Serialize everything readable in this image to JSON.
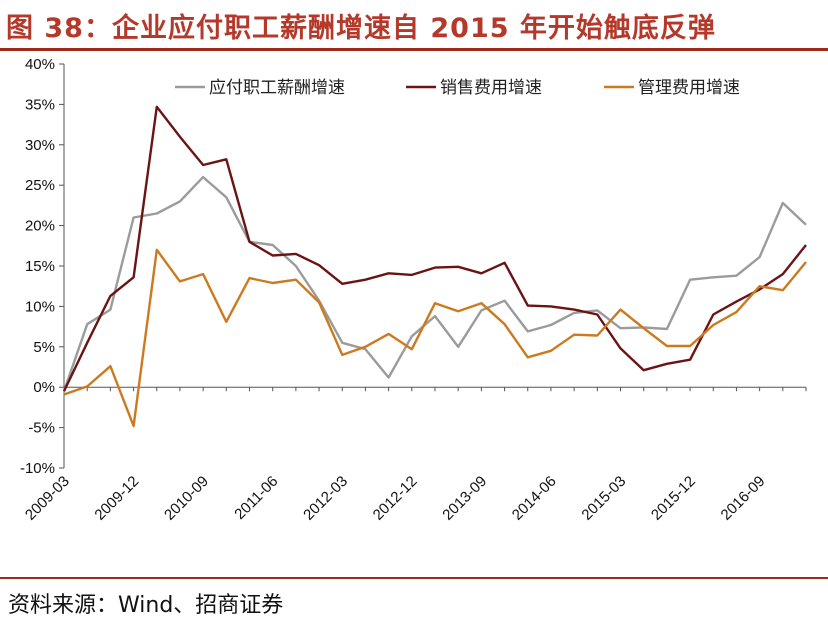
{
  "header": {
    "title": "图 38：企业应付职工薪酬增速自 2015 年开始触底反弹"
  },
  "footer": {
    "source": "资料来源：Wind、招商证券"
  },
  "chart_data": {
    "type": "line",
    "title": "图 38：企业应付职工薪酬增速自 2015 年开始触底反弹",
    "xlabel": "",
    "ylabel": "",
    "ylim": [
      -10,
      40
    ],
    "y_ticks": [
      "40%",
      "35%",
      "30%",
      "25%",
      "20%",
      "15%",
      "10%",
      "5%",
      "0%",
      "-5%",
      "-10%"
    ],
    "y_tick_values": [
      40,
      35,
      30,
      25,
      20,
      15,
      10,
      5,
      0,
      -5,
      -10
    ],
    "x_tick_labels": [
      "2009-03",
      "2009-12",
      "2010-09",
      "2011-06",
      "2012-03",
      "2012-12",
      "2013-09",
      "2014-06",
      "2015-03",
      "2015-12",
      "2016-09"
    ],
    "x_tick_index": [
      0,
      3,
      6,
      9,
      12,
      15,
      18,
      21,
      24,
      27,
      30
    ],
    "grid": false,
    "legend_position": "top",
    "x": [
      "2009-03",
      "2009-06",
      "2009-09",
      "2009-12",
      "2010-03",
      "2010-06",
      "2010-09",
      "2010-12",
      "2011-03",
      "2011-06",
      "2011-09",
      "2011-12",
      "2012-03",
      "2012-06",
      "2012-09",
      "2012-12",
      "2013-03",
      "2013-06",
      "2013-09",
      "2013-12",
      "2014-03",
      "2014-06",
      "2014-09",
      "2014-12",
      "2015-03",
      "2015-06",
      "2015-09",
      "2015-12",
      "2016-03",
      "2016-06",
      "2016-09",
      "2016-12",
      "2017-03"
    ],
    "series": [
      {
        "name": "应付职工薪酬增速",
        "color": "#9b9b9b",
        "values": [
          -0.5,
          7.8,
          9.6,
          21.0,
          21.5,
          23.0,
          26.0,
          23.5,
          18.0,
          17.6,
          15.0,
          10.7,
          5.5,
          4.7,
          1.2,
          6.3,
          8.8,
          5.0,
          9.5,
          10.7,
          6.9,
          7.7,
          9.2,
          9.5,
          7.3,
          7.4,
          7.2,
          13.3,
          13.6,
          13.8,
          16.1,
          22.8,
          20.1
        ]
      },
      {
        "name": "销售费用增速",
        "color": "#6b1414",
        "values": [
          -0.5,
          5.5,
          11.3,
          13.6,
          34.7,
          31.0,
          27.5,
          28.2,
          18.0,
          16.3,
          16.5,
          15.1,
          12.8,
          13.3,
          14.1,
          13.9,
          14.8,
          14.9,
          14.1,
          15.4,
          10.1,
          10.0,
          9.6,
          9.0,
          4.8,
          2.1,
          2.9,
          3.4,
          9.0,
          10.6,
          12.1,
          14.0,
          17.6
        ]
      },
      {
        "name": "管理费用增速",
        "color": "#cc7a1f",
        "values": [
          -0.9,
          0.1,
          2.6,
          -4.8,
          17.0,
          13.1,
          14.0,
          8.1,
          13.5,
          12.9,
          13.3,
          10.5,
          4.0,
          5.0,
          6.6,
          4.7,
          10.4,
          9.4,
          10.4,
          7.8,
          3.7,
          4.5,
          6.5,
          6.4,
          9.6,
          7.3,
          5.1,
          5.1,
          7.7,
          9.3,
          12.5,
          12.0,
          15.5
        ]
      }
    ]
  }
}
